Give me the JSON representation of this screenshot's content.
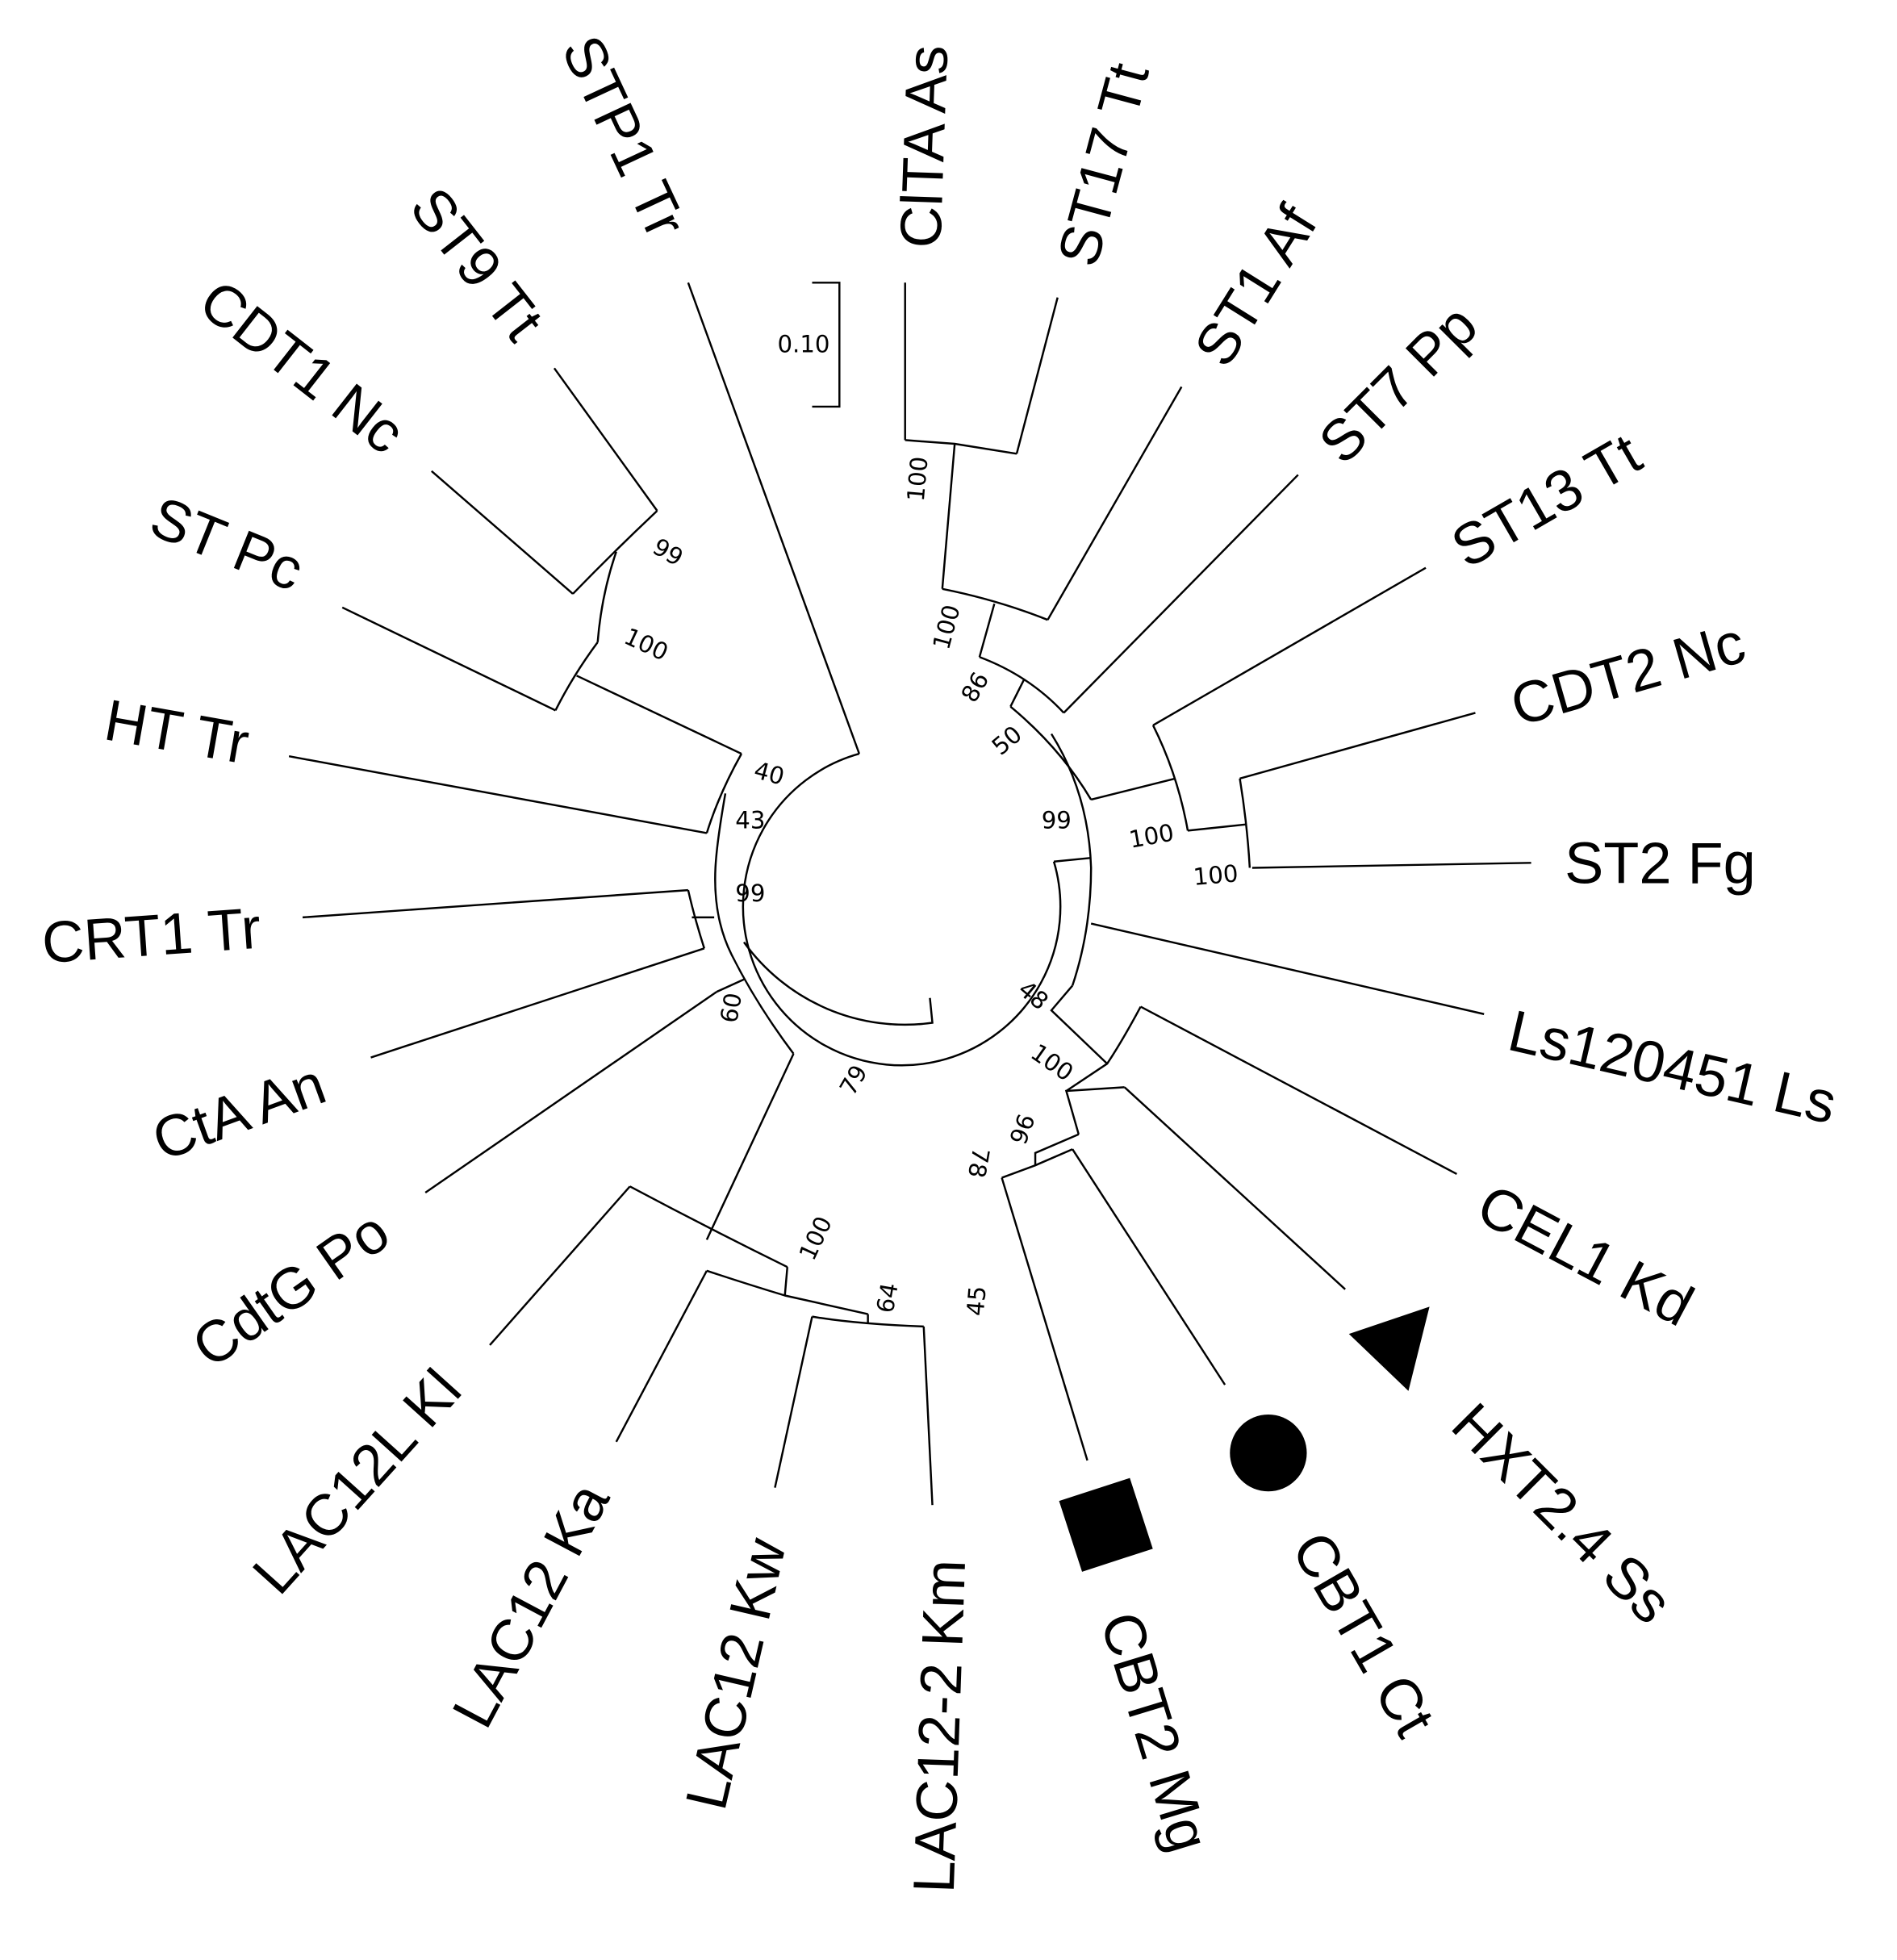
{
  "scale_bar": {
    "label": "0.10"
  },
  "leaves": [
    "ClTA As",
    "ST17 Tt",
    "ST1 Af",
    "ST7 Pp",
    "ST13 Tt",
    "CDT2 Nc",
    "ST2 Fg",
    "Ls120451 Ls",
    "CEL1 Kd",
    "HXT2.4 Ss",
    "CBT1 Ct",
    "CBT2 Mg",
    "LAC12-2 Km",
    "LAC12 Kw",
    "LAC12 Ka",
    "LAC12L Kl",
    "CdtG Po",
    "CtA An",
    "CRT1 Tr",
    "HT Tr",
    "ST Pc",
    "CDT1 Nc",
    "ST9 Tt",
    "STP1 Tr"
  ],
  "markers": {
    "HXT2.4 Ss": "triangle",
    "CBT1 Ct": "circle",
    "CBT2 Mg": "square"
  },
  "bootstrap": [
    "99",
    "100",
    "40",
    "43",
    "99",
    "60",
    "79",
    "100",
    "64",
    "45",
    "78",
    "96",
    "100",
    "48",
    "99",
    "100",
    "100",
    "50",
    "86",
    "100",
    "100"
  ]
}
